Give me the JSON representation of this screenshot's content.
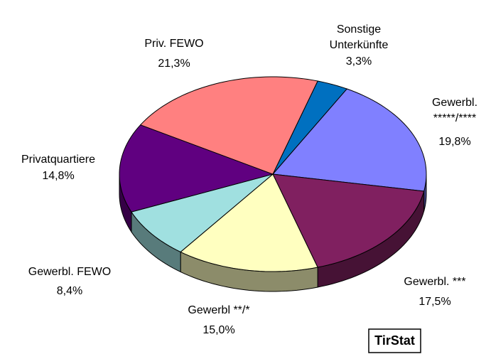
{
  "chart_data": {
    "type": "pie3d",
    "categories": [
      "Sonstige Unterkünfte",
      "Gewerbl. *****/****",
      "Gewerbl. ***",
      "Gewerbl **/*",
      "Gewerbl. FEWO",
      "Privatquartiere",
      "Priv. FEWO"
    ],
    "values": [
      3.3,
      19.8,
      17.5,
      15.0,
      8.4,
      14.8,
      21.3
    ],
    "value_labels": [
      "3,3%",
      "19,8%",
      "17,5%",
      "15,0%",
      "8,4%",
      "14,8%",
      "21,3%"
    ],
    "colors": [
      "#0070c0",
      "#8080ff",
      "#802060",
      "#ffffc0",
      "#a0e0e0",
      "#600080",
      "#ff8080"
    ],
    "watermark": "TirStat"
  }
}
